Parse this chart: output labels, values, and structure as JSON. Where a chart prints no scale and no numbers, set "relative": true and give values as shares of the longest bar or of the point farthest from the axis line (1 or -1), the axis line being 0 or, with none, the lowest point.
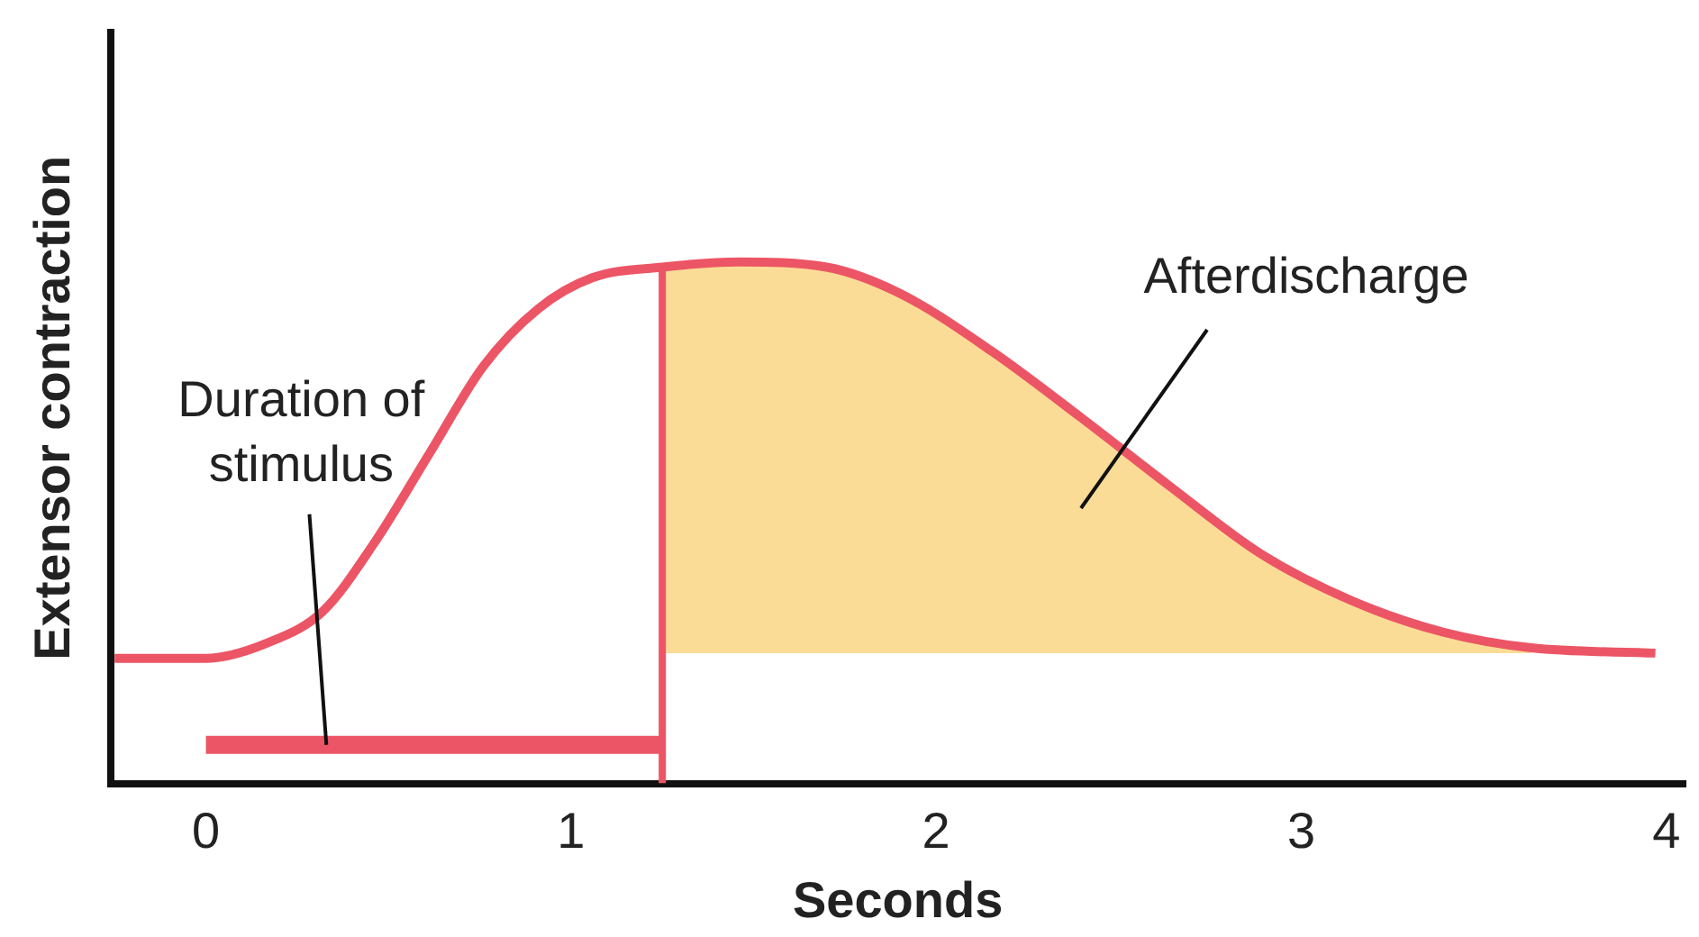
{
  "chart_data": {
    "type": "line",
    "xlabel": "Seconds",
    "ylabel": "Extensor contraction",
    "relative": true,
    "xlim": [
      -0.26,
      4.05
    ],
    "xticks": [
      0,
      1,
      2,
      3,
      4
    ],
    "grid": false,
    "legend": false,
    "marker": "none",
    "line_style": "solid",
    "series": [
      {
        "color": "#ec5565",
        "x": [
          -0.25,
          0,
          0.17,
          0.32,
          0.46,
          0.61,
          0.76,
          0.91,
          1.06,
          1.25,
          1.46,
          1.7,
          1.9,
          2.15,
          2.4,
          2.64,
          2.89,
          3.14,
          3.39,
          3.63,
          3.97
        ],
        "values": [
          0.24,
          0.24,
          0.27,
          0.33,
          0.46,
          0.63,
          0.8,
          0.91,
          0.97,
          0.99,
          1.0,
          0.99,
          0.94,
          0.83,
          0.7,
          0.57,
          0.44,
          0.35,
          0.29,
          0.26,
          0.25
        ],
        "lower": [
          null,
          null,
          null,
          null,
          null,
          null,
          null,
          null,
          null,
          0.25,
          0.25,
          0.25,
          0.25,
          0.25,
          0.25,
          0.25,
          0.25,
          0.25,
          0.25,
          0.25,
          null
        ],
        "upper": [
          null,
          null,
          null,
          null,
          null,
          null,
          null,
          null,
          null,
          0.99,
          1.0,
          0.99,
          0.94,
          0.83,
          0.7,
          0.57,
          0.44,
          0.35,
          0.29,
          0.26,
          null
        ]
      },
      {
        "color": "#ec5565",
        "x": [
          0,
          1.25
        ],
        "values": [
          0.074,
          0.074
        ]
      },
      {
        "color": "#ec5565",
        "x": [
          1.25,
          1.25
        ],
        "values": [
          0,
          0.99
        ]
      }
    ],
    "annotations": [
      {
        "text": "Duration of\nstimulus",
        "x": 0.33,
        "y": 0.074
      },
      "Afterdischarge"
    ]
  }
}
